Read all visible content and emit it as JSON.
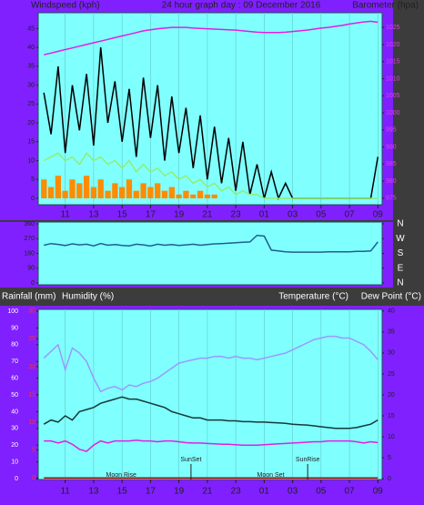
{
  "chart_data": [
    {
      "type": "line",
      "title": "24 hour graph day : 09 December 2016",
      "ylabel": "Windspeed (kph)",
      "y2label": "Barometer (hpa)",
      "xlim": [
        0.1,
        24.3
      ],
      "xticks": [
        {
          "value": 2,
          "label": "11"
        },
        {
          "value": 4,
          "label": "13"
        },
        {
          "value": 6,
          "label": "15"
        },
        {
          "value": 8,
          "label": "17"
        },
        {
          "value": 10,
          "label": "19"
        },
        {
          "value": 12,
          "label": "21"
        },
        {
          "value": 14,
          "label": "23"
        },
        {
          "value": 16,
          "label": "01"
        },
        {
          "value": 18,
          "label": "03"
        },
        {
          "value": 20,
          "label": "05"
        },
        {
          "value": 22,
          "label": "07"
        },
        {
          "value": 24,
          "label": "09"
        }
      ],
      "ylim": [
        -1.7,
        49.2
      ],
      "yticks": [
        0,
        5,
        10,
        15,
        20,
        25,
        30,
        35,
        40,
        45
      ],
      "ytick_color": "#202020",
      "y2lim": [
        973.1,
        1029.3
      ],
      "y2ticks": [
        975,
        980,
        985,
        990,
        995,
        1000,
        1005,
        1010,
        1015,
        1020,
        1025
      ],
      "y2tick_color": "#e040e0",
      "grid": true,
      "x": [
        0.5,
        1,
        1.5,
        2,
        2.5,
        3,
        3.5,
        4,
        4.5,
        5,
        5.5,
        6,
        6.5,
        7,
        7.5,
        8,
        8.5,
        9,
        9.5,
        10,
        10.5,
        11,
        11.5,
        12,
        12.5,
        13,
        13.5,
        14,
        14.5,
        15,
        15.5,
        16,
        16.5,
        17,
        17.5,
        18,
        18.5,
        19,
        19.5,
        20,
        20.5,
        21,
        21.5,
        22,
        22.5,
        23,
        23.5,
        24
      ],
      "series": [
        {
          "color": "#ff8c00",
          "type": "bar",
          "values": [
            5,
            3,
            6,
            2,
            5,
            4,
            6,
            3,
            5,
            2,
            4,
            3,
            5,
            2,
            4,
            3,
            4,
            2,
            3,
            1,
            2,
            1,
            2,
            1,
            1,
            0,
            0,
            0,
            0,
            0,
            0,
            0,
            0,
            0,
            0,
            0,
            0,
            0,
            0,
            0,
            0,
            0,
            0,
            0,
            0,
            0,
            0,
            0
          ]
        },
        {
          "color": "#000000",
          "values": [
            28,
            17,
            35,
            12,
            30,
            18,
            33,
            14,
            40,
            20,
            31,
            15,
            29,
            11,
            32,
            16,
            30,
            10,
            27,
            12,
            24,
            8,
            22,
            5,
            19,
            4,
            16,
            2,
            15,
            1,
            9,
            0,
            7,
            0,
            4,
            0,
            0,
            0,
            0,
            0,
            0,
            0,
            0,
            0,
            0,
            0,
            0,
            11
          ]
        },
        {
          "color": "#90ee70",
          "values": [
            10,
            11,
            12,
            10,
            11,
            9,
            12,
            10,
            11,
            9,
            10,
            8,
            10,
            7,
            9,
            7,
            8,
            6,
            7,
            5,
            6,
            4,
            5,
            3,
            4,
            2,
            3,
            1,
            2,
            1,
            1,
            0,
            0,
            0,
            0,
            0,
            0,
            0,
            0,
            0,
            0,
            0,
            0,
            0,
            0,
            0,
            0,
            0
          ]
        },
        {
          "color": "#e020e0",
          "axis": "y2",
          "values": [
            1017,
            1017.5,
            1018,
            1018.5,
            1019,
            1019.5,
            1020,
            1020.5,
            1021,
            1021.5,
            1022,
            1022.5,
            1023,
            1023.5,
            1024,
            1024.3,
            1024.6,
            1024.8,
            1025,
            1025,
            1025,
            1024.8,
            1024.7,
            1024.6,
            1024.5,
            1024.4,
            1024.3,
            1024.2,
            1024,
            1023.8,
            1023.6,
            1023.5,
            1023.5,
            1023.5,
            1023.6,
            1023.8,
            1024,
            1024.2,
            1024.5,
            1024.8,
            1025,
            1025.3,
            1025.6,
            1026,
            1026.3,
            1026.6,
            1026.8,
            1026.5
          ]
        }
      ]
    },
    {
      "type": "line",
      "xlim": [
        0.1,
        24.3
      ],
      "ylim": [
        -11,
        371
      ],
      "yticks": [
        0,
        90,
        180,
        270,
        360
      ],
      "ytick_color": "#202020",
      "y2lim": [
        -11,
        371
      ],
      "y2ticks": [
        {
          "value": 0,
          "label": "N"
        },
        {
          "value": 90,
          "label": "E"
        },
        {
          "value": 180,
          "label": "S"
        },
        {
          "value": 270,
          "label": "W"
        },
        {
          "value": 360,
          "label": "N"
        }
      ],
      "y2tick_color": "#ffffff",
      "grid": false,
      "x": [
        0.5,
        1,
        1.5,
        2,
        2.5,
        3,
        3.5,
        4,
        4.5,
        5,
        5.5,
        6,
        6.5,
        7,
        7.5,
        8,
        8.5,
        9,
        9.5,
        10,
        10.5,
        11,
        11.5,
        12,
        12.5,
        13,
        13.5,
        14,
        14.5,
        15,
        15.5,
        16,
        16.5,
        17,
        17.5,
        18,
        18.5,
        19,
        19.5,
        20,
        20.5,
        21,
        21.5,
        22,
        22.5,
        23,
        23.5,
        24
      ],
      "series": [
        {
          "color": "#1f5f8f",
          "values": [
            230,
            240,
            235,
            228,
            238,
            232,
            236,
            226,
            240,
            230,
            234,
            228,
            226,
            236,
            232,
            225,
            236,
            230,
            234,
            228,
            232,
            236,
            230,
            234,
            238,
            240,
            242,
            245,
            248,
            250,
            290,
            285,
            200,
            195,
            190,
            188,
            188,
            188,
            188,
            188,
            190,
            190,
            190,
            190,
            192,
            192,
            195,
            250
          ]
        }
      ]
    },
    {
      "type": "line",
      "left_titles": [
        "Rainfall (mm)",
        "Humidity (%)"
      ],
      "right_titles": [
        "Temperature (°C)",
        "Dew Point (°C)"
      ],
      "xlim": [
        0.1,
        24.3
      ],
      "xticks": [
        {
          "value": 2,
          "label": "11"
        },
        {
          "value": 4,
          "label": "13"
        },
        {
          "value": 6,
          "label": "15"
        },
        {
          "value": 8,
          "label": "17"
        },
        {
          "value": 10,
          "label": "19"
        },
        {
          "value": 12,
          "label": "21"
        },
        {
          "value": 14,
          "label": "23"
        },
        {
          "value": 16,
          "label": "01"
        },
        {
          "value": 18,
          "label": "03"
        },
        {
          "value": 20,
          "label": "05"
        },
        {
          "value": 22,
          "label": "07"
        },
        {
          "value": 24,
          "label": "09"
        }
      ],
      "ylim": [
        -0.5,
        101.1
      ],
      "yticks": [
        0,
        10,
        20,
        30,
        40,
        50,
        60,
        70,
        80,
        90,
        100
      ],
      "ytick_color": "#ffffff",
      "y3lim": [
        -0.3,
        30.3
      ],
      "y3ticks": [
        0,
        5,
        10,
        15,
        20,
        25,
        30
      ],
      "y3tick_color": "#ff3030",
      "y2lim": [
        -0.2,
        40.4
      ],
      "y2ticks": [
        0,
        5,
        10,
        15,
        20,
        25,
        30,
        35,
        40
      ],
      "y2tick_color": "#202020",
      "grid": true,
      "annotations": [
        {
          "text": "Moon Rise",
          "x": 5.94
        },
        {
          "text": "SunSet",
          "x": 10.85
        },
        {
          "text": "Moon Set",
          "x": 16.46
        },
        {
          "text": "SunRise",
          "x": 19.06
        }
      ],
      "x": [
        0.5,
        1,
        1.5,
        2,
        2.5,
        3,
        3.5,
        4,
        4.5,
        5,
        5.5,
        6,
        6.5,
        7,
        7.5,
        8,
        8.5,
        9,
        9.5,
        10,
        10.5,
        11,
        11.5,
        12,
        12.5,
        13,
        13.5,
        14,
        14.5,
        15,
        15.5,
        16,
        16.5,
        17,
        17.5,
        18,
        18.5,
        19,
        19.5,
        20,
        20.5,
        21,
        21.5,
        22,
        22.5,
        23,
        23.5,
        24
      ],
      "series": [
        {
          "color": "#9a9aff",
          "values": [
            72,
            76,
            80,
            65,
            78,
            75,
            70,
            60,
            52,
            54,
            55,
            53,
            56,
            55,
            57,
            58,
            60,
            63,
            66,
            69,
            70,
            71,
            72,
            72,
            73,
            73,
            72,
            73,
            72,
            72,
            71,
            72,
            73,
            74,
            75,
            77,
            79,
            81,
            83,
            84,
            85,
            85,
            84,
            84,
            82,
            80,
            76,
            71
          ]
        },
        {
          "color": "#c00000",
          "axis": "y3",
          "values": [
            0,
            0,
            0,
            0,
            0,
            0,
            0,
            0,
            0,
            0,
            0,
            0,
            0,
            0,
            0,
            0,
            0,
            0,
            0,
            0,
            0,
            0,
            0,
            0,
            0,
            0,
            0,
            0,
            0,
            0,
            0,
            0,
            0,
            0,
            0,
            0,
            0,
            0,
            0,
            0,
            0,
            0,
            0,
            0,
            0,
            0,
            0,
            0
          ]
        },
        {
          "color": "#163838",
          "axis": "y2",
          "values": [
            13,
            14,
            13.5,
            15,
            14,
            16,
            16.5,
            17,
            18,
            18.5,
            19,
            19.5,
            19,
            19,
            18.5,
            18,
            17.5,
            17,
            16,
            15.5,
            15,
            14.5,
            14.5,
            14,
            14,
            14,
            13.8,
            13.8,
            13.6,
            13.6,
            13.5,
            13.5,
            13.4,
            13.3,
            13.2,
            13,
            12.9,
            12.8,
            12.6,
            12.4,
            12.2,
            12,
            12,
            12,
            12.2,
            12.6,
            13,
            14
          ]
        },
        {
          "color": "#e020e0",
          "axis": "y2",
          "values": [
            9,
            9,
            8.5,
            9,
            8.2,
            7,
            6.5,
            8,
            9,
            8.5,
            9,
            9,
            9,
            9.2,
            9,
            9,
            8.8,
            9,
            9,
            8.8,
            8.6,
            8.5,
            8.5,
            8.4,
            8.3,
            8.2,
            8.2,
            8.1,
            8,
            8,
            8,
            8.1,
            8.2,
            8.3,
            8.4,
            8.5,
            8.6,
            8.7,
            8.8,
            8.8,
            9,
            9,
            9,
            9,
            8.8,
            8.5,
            8.8,
            8.6
          ]
        }
      ]
    }
  ]
}
